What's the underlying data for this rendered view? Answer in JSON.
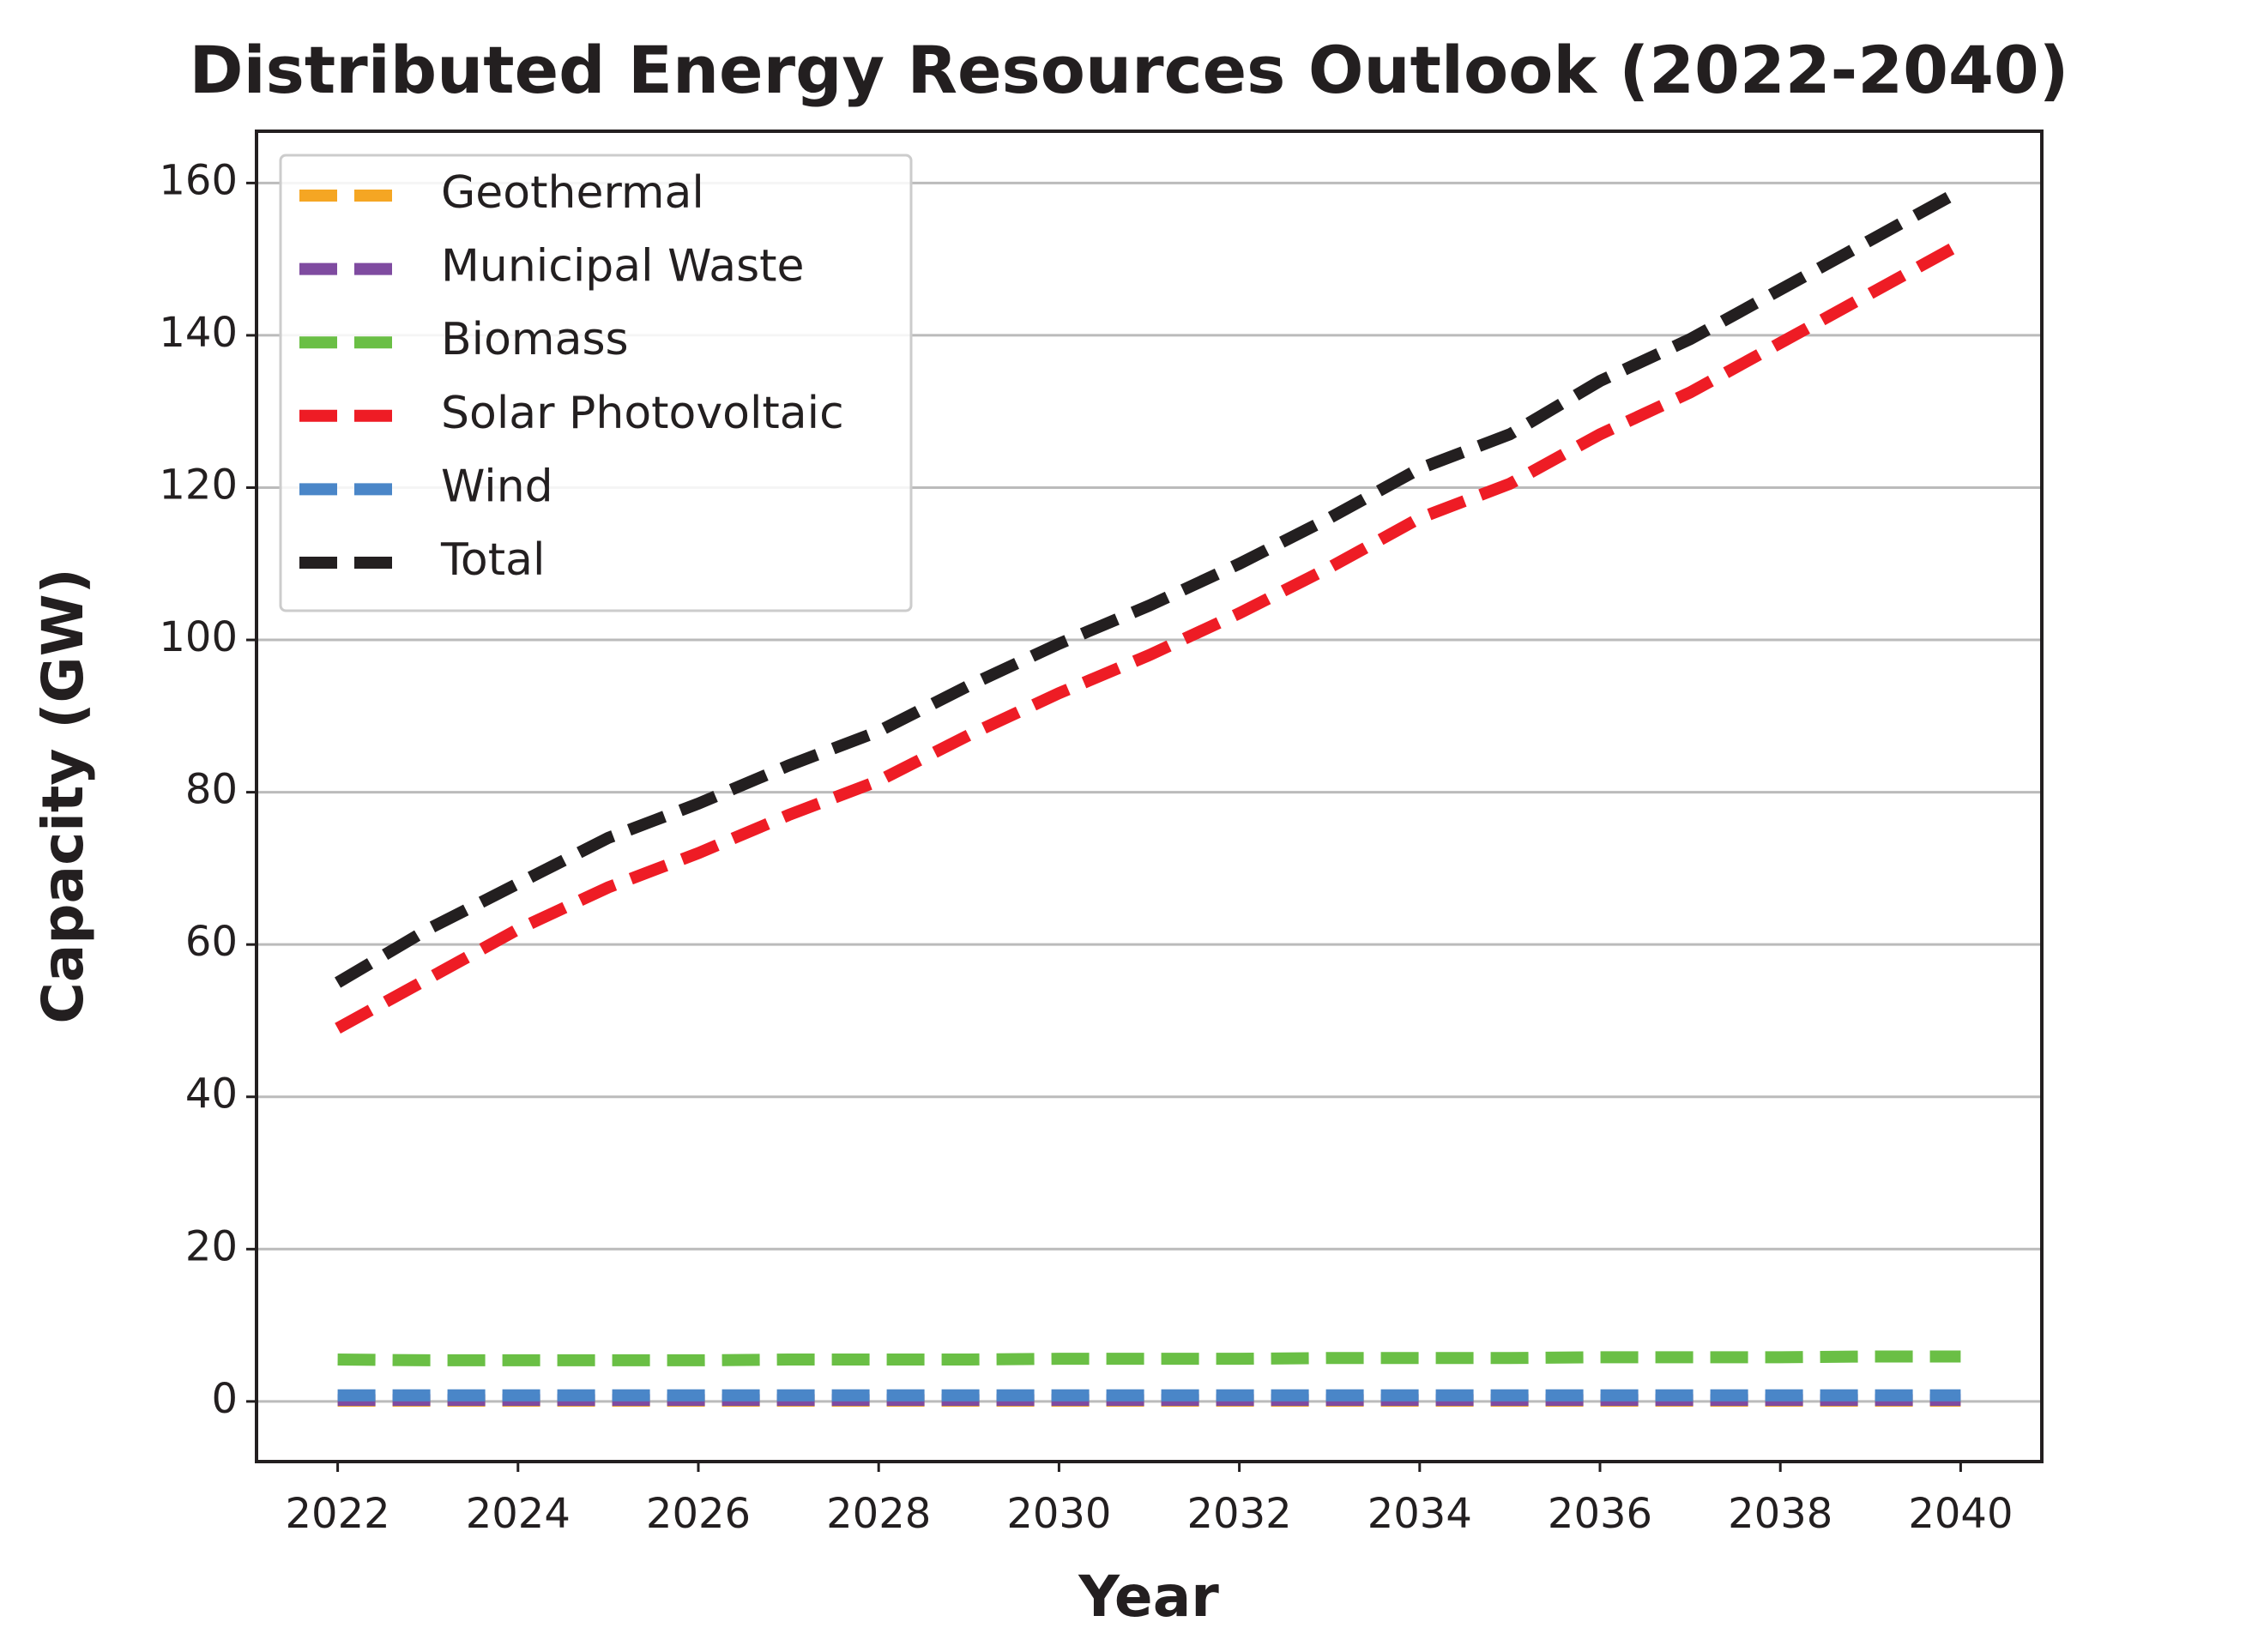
{
  "chart_data": {
    "type": "line",
    "title": "Distributed Energy Resources Outlook (2022-2040)",
    "x_label": "Year",
    "y_label": "Capacity (GW)",
    "x": [
      2022,
      2023,
      2024,
      2025,
      2026,
      2027,
      2028,
      2029,
      2030,
      2031,
      2032,
      2033,
      2034,
      2035,
      2036,
      2037,
      2038,
      2039,
      2040
    ],
    "series": [
      {
        "name": "Geothermal",
        "color": "#f5a623",
        "values": [
          0.1,
          0.1,
          0.1,
          0.1,
          0.1,
          0.1,
          0.1,
          0.1,
          0.1,
          0.1,
          0.1,
          0.1,
          0.1,
          0.1,
          0.1,
          0.1,
          0.1,
          0.1,
          0.1
        ]
      },
      {
        "name": "Municipal Waste",
        "color": "#7f4ba0",
        "values": [
          0.2,
          0.2,
          0.2,
          0.2,
          0.2,
          0.2,
          0.2,
          0.2,
          0.2,
          0.2,
          0.2,
          0.2,
          0.2,
          0.2,
          0.2,
          0.2,
          0.2,
          0.2,
          0.2
        ]
      },
      {
        "name": "Biomass",
        "color": "#6abf45",
        "values": [
          5.5,
          5.4,
          5.4,
          5.4,
          5.4,
          5.5,
          5.5,
          5.5,
          5.6,
          5.6,
          5.6,
          5.7,
          5.7,
          5.7,
          5.8,
          5.8,
          5.8,
          5.9,
          5.9
        ]
      },
      {
        "name": "Solar Photovoltaic",
        "color": "#ee1c25",
        "values": [
          49,
          55.5,
          62,
          67.5,
          72,
          77,
          81.5,
          87.5,
          93,
          98,
          103.5,
          109.5,
          116,
          120.5,
          127,
          132.5,
          139,
          145.5,
          152
        ]
      },
      {
        "name": "Wind",
        "color": "#4a86c8",
        "values": [
          0.8,
          0.8,
          0.8,
          0.8,
          0.8,
          0.8,
          0.8,
          0.8,
          0.8,
          0.8,
          0.8,
          0.8,
          0.8,
          0.8,
          0.8,
          0.8,
          0.8,
          0.8,
          0.8
        ]
      },
      {
        "name": "Total",
        "color": "#231f20",
        "values": [
          55,
          62,
          68,
          74,
          78.5,
          83.5,
          88,
          94,
          99.5,
          104.5,
          110,
          116,
          122.5,
          127,
          134,
          139.5,
          146,
          152.5,
          159
        ]
      }
    ],
    "xlim": [
      2021.1,
      2040.9
    ],
    "xticks": [
      2022,
      2024,
      2026,
      2028,
      2030,
      2032,
      2034,
      2036,
      2038,
      2040
    ],
    "ylim": [
      -7.9,
      166.8
    ],
    "yticks": [
      0,
      20,
      40,
      60,
      80,
      100,
      120,
      140,
      160
    ],
    "grid": true,
    "legend": "upper left"
  }
}
